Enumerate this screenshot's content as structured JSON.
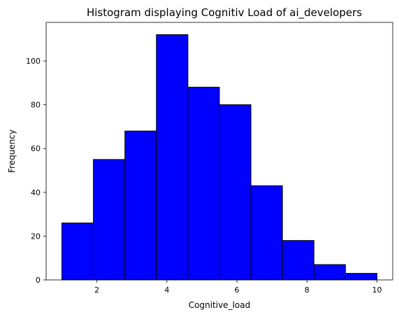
{
  "chart_data": {
    "type": "bar",
    "title": "Histogram displaying Cognitiv Load of ai_developers",
    "xlabel": "Cognitive_load",
    "ylabel": "Frequency",
    "bin_edges": [
      1.0,
      1.9,
      2.8,
      3.7,
      4.6,
      5.5,
      6.4,
      7.3,
      8.2,
      9.1,
      10.0
    ],
    "values": [
      26,
      55,
      68,
      112,
      88,
      80,
      43,
      18,
      7,
      3
    ],
    "xlim": [
      0.55,
      10.45
    ],
    "ylim": [
      0,
      117.6
    ],
    "xticks": [
      2,
      4,
      6,
      8,
      10
    ],
    "yticks": [
      0,
      20,
      40,
      60,
      80,
      100
    ],
    "bar_color": "#0000ff",
    "edge_color": "#000000",
    "grid": false,
    "legend": "none"
  }
}
